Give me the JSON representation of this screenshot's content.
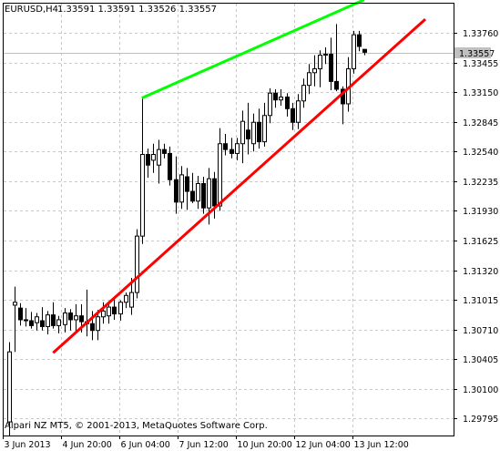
{
  "header": {
    "symbol": "EURUSD,H4",
    "ohlc": "1.33591 1.33591 1.33526 1.33557"
  },
  "copyright": "Alpari NZ MT5, © 2001-2013, MetaQuotes Software Corp.",
  "current_price_label": "1.33557",
  "colors": {
    "grid": "#c8c8c8",
    "frame": "#000000",
    "bull_fill": "#ffffff",
    "bear_fill": "#000000",
    "resistance_line": "#00ff00",
    "support_line": "#ff0000",
    "price_line": "#c0c0c0",
    "price_tag_bg": "#c0c0c0"
  },
  "chart_data": {
    "type": "candlestick",
    "symbol": "EURUSD",
    "timeframe": "H4",
    "y_ticks": [
      "1.33760",
      "1.33455",
      "1.33150",
      "1.32845",
      "1.32540",
      "1.32235",
      "1.31930",
      "1.31625",
      "1.31320",
      "1.31015",
      "1.30710",
      "1.30405",
      "1.30100",
      "1.29795"
    ],
    "ylim": [
      1.2962,
      1.3406
    ],
    "x_ticks": [
      "3 Jun 2013",
      "4 Jun 20:00",
      "6 Jun 04:00",
      "7 Jun 12:00",
      "10 Jun 20:00",
      "12 Jun 04:00",
      "13 Jun 12:00"
    ],
    "candles": [
      {
        "o": 1.2976,
        "h": 1.3058,
        "l": 1.2962,
        "c": 1.3048
      },
      {
        "o": 1.3096,
        "h": 1.3115,
        "l": 1.3048,
        "c": 1.3099
      },
      {
        "o": 1.3093,
        "h": 1.3098,
        "l": 1.3075,
        "c": 1.3081
      },
      {
        "o": 1.3081,
        "h": 1.3093,
        "l": 1.3074,
        "c": 1.308
      },
      {
        "o": 1.308,
        "h": 1.3089,
        "l": 1.3072,
        "c": 1.3075
      },
      {
        "o": 1.3078,
        "h": 1.3088,
        "l": 1.307,
        "c": 1.3084
      },
      {
        "o": 1.308,
        "h": 1.3094,
        "l": 1.307,
        "c": 1.3074
      },
      {
        "o": 1.3074,
        "h": 1.309,
        "l": 1.3066,
        "c": 1.3086
      },
      {
        "o": 1.3086,
        "h": 1.3099,
        "l": 1.3072,
        "c": 1.3075
      },
      {
        "o": 1.3075,
        "h": 1.3085,
        "l": 1.3067,
        "c": 1.3081
      },
      {
        "o": 1.3076,
        "h": 1.3093,
        "l": 1.3068,
        "c": 1.3088
      },
      {
        "o": 1.3088,
        "h": 1.3092,
        "l": 1.307,
        "c": 1.3081
      },
      {
        "o": 1.3081,
        "h": 1.3097,
        "l": 1.307,
        "c": 1.3085
      },
      {
        "o": 1.3085,
        "h": 1.3097,
        "l": 1.3068,
        "c": 1.3079
      },
      {
        "o": 1.3079,
        "h": 1.3112,
        "l": 1.3064,
        "c": 1.3077
      },
      {
        "o": 1.3077,
        "h": 1.309,
        "l": 1.306,
        "c": 1.307
      },
      {
        "o": 1.307,
        "h": 1.3091,
        "l": 1.306,
        "c": 1.3084
      },
      {
        "o": 1.3084,
        "h": 1.3099,
        "l": 1.3077,
        "c": 1.309
      },
      {
        "o": 1.3085,
        "h": 1.31,
        "l": 1.3077,
        "c": 1.3094
      },
      {
        "o": 1.3094,
        "h": 1.3105,
        "l": 1.3081,
        "c": 1.3087
      },
      {
        "o": 1.3087,
        "h": 1.3101,
        "l": 1.308,
        "c": 1.3099
      },
      {
        "o": 1.3099,
        "h": 1.3109,
        "l": 1.3093,
        "c": 1.3106
      },
      {
        "o": 1.3094,
        "h": 1.3124,
        "l": 1.3086,
        "c": 1.3109
      },
      {
        "o": 1.3109,
        "h": 1.3174,
        "l": 1.3103,
        "c": 1.3167
      },
      {
        "o": 1.3167,
        "h": 1.3309,
        "l": 1.3159,
        "c": 1.3251
      },
      {
        "o": 1.3251,
        "h": 1.3257,
        "l": 1.3227,
        "c": 1.324
      },
      {
        "o": 1.3245,
        "h": 1.3262,
        "l": 1.3232,
        "c": 1.3251
      },
      {
        "o": 1.324,
        "h": 1.3266,
        "l": 1.3221,
        "c": 1.3256
      },
      {
        "o": 1.3256,
        "h": 1.3262,
        "l": 1.3247,
        "c": 1.3252
      },
      {
        "o": 1.3252,
        "h": 1.3259,
        "l": 1.3219,
        "c": 1.3225
      },
      {
        "o": 1.3225,
        "h": 1.3249,
        "l": 1.319,
        "c": 1.3202
      },
      {
        "o": 1.3202,
        "h": 1.3239,
        "l": 1.3195,
        "c": 1.323
      },
      {
        "o": 1.3228,
        "h": 1.3237,
        "l": 1.3194,
        "c": 1.3213
      },
      {
        "o": 1.3213,
        "h": 1.3232,
        "l": 1.3201,
        "c": 1.3203
      },
      {
        "o": 1.3203,
        "h": 1.3229,
        "l": 1.3195,
        "c": 1.3221
      },
      {
        "o": 1.3221,
        "h": 1.3228,
        "l": 1.319,
        "c": 1.3196
      },
      {
        "o": 1.3196,
        "h": 1.3237,
        "l": 1.3179,
        "c": 1.3226
      },
      {
        "o": 1.3226,
        "h": 1.3233,
        "l": 1.3185,
        "c": 1.3198
      },
      {
        "o": 1.3198,
        "h": 1.3278,
        "l": 1.3193,
        "c": 1.3262
      },
      {
        "o": 1.3262,
        "h": 1.3272,
        "l": 1.325,
        "c": 1.3256
      },
      {
        "o": 1.3256,
        "h": 1.3268,
        "l": 1.3247,
        "c": 1.3252
      },
      {
        "o": 1.3252,
        "h": 1.3268,
        "l": 1.3245,
        "c": 1.3262
      },
      {
        "o": 1.3262,
        "h": 1.3296,
        "l": 1.3242,
        "c": 1.3285
      },
      {
        "o": 1.3276,
        "h": 1.3304,
        "l": 1.3251,
        "c": 1.3267
      },
      {
        "o": 1.3262,
        "h": 1.3293,
        "l": 1.3254,
        "c": 1.3284
      },
      {
        "o": 1.3284,
        "h": 1.3298,
        "l": 1.3257,
        "c": 1.3264
      },
      {
        "o": 1.3264,
        "h": 1.3304,
        "l": 1.3259,
        "c": 1.3291
      },
      {
        "o": 1.3291,
        "h": 1.3319,
        "l": 1.3283,
        "c": 1.3314
      },
      {
        "o": 1.3314,
        "h": 1.3318,
        "l": 1.3299,
        "c": 1.3307
      },
      {
        "o": 1.3307,
        "h": 1.3318,
        "l": 1.3301,
        "c": 1.331
      },
      {
        "o": 1.331,
        "h": 1.3314,
        "l": 1.329,
        "c": 1.3298
      },
      {
        "o": 1.3298,
        "h": 1.3304,
        "l": 1.3276,
        "c": 1.3284
      },
      {
        "o": 1.3284,
        "h": 1.3313,
        "l": 1.3277,
        "c": 1.3306
      },
      {
        "o": 1.3306,
        "h": 1.3329,
        "l": 1.3299,
        "c": 1.3322
      },
      {
        "o": 1.3322,
        "h": 1.3344,
        "l": 1.3313,
        "c": 1.3335
      },
      {
        "o": 1.3335,
        "h": 1.3353,
        "l": 1.3321,
        "c": 1.3339
      },
      {
        "o": 1.3339,
        "h": 1.3358,
        "l": 1.332,
        "c": 1.3353
      },
      {
        "o": 1.3353,
        "h": 1.3361,
        "l": 1.3344,
        "c": 1.3354
      },
      {
        "o": 1.3354,
        "h": 1.3371,
        "l": 1.3317,
        "c": 1.3326
      },
      {
        "o": 1.3326,
        "h": 1.3385,
        "l": 1.3316,
        "c": 1.3318
      },
      {
        "o": 1.3318,
        "h": 1.3321,
        "l": 1.3282,
        "c": 1.3303
      },
      {
        "o": 1.3303,
        "h": 1.3351,
        "l": 1.3295,
        "c": 1.3339
      },
      {
        "o": 1.3339,
        "h": 1.3378,
        "l": 1.3334,
        "c": 1.3374
      },
      {
        "o": 1.3374,
        "h": 1.3378,
        "l": 1.3357,
        "c": 1.3362
      },
      {
        "o": 1.3359,
        "h": 1.3359,
        "l": 1.3353,
        "c": 1.3356
      }
    ],
    "trendlines": [
      {
        "name": "resistance",
        "color": "#00ff00",
        "from": {
          "bar": 24,
          "price": 1.3309
        },
        "to": {
          "bar": 64,
          "price": 1.341
        }
      },
      {
        "name": "support",
        "color": "#ff0000",
        "from": {
          "bar": 8,
          "price": 1.3047
        },
        "to": {
          "bar": 75,
          "price": 1.339
        }
      }
    ],
    "current_price": 1.33557
  }
}
